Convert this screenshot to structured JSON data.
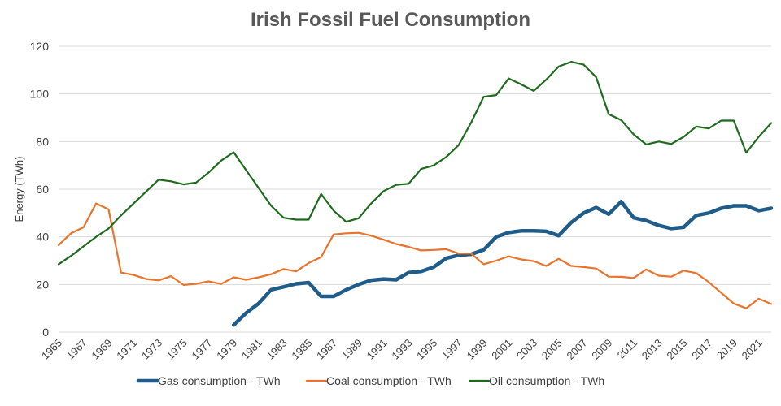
{
  "chart_data": {
    "type": "line",
    "title": "Irish Fossil Fuel Consumption",
    "xlabel": "",
    "ylabel": "Energy (TWh)",
    "xlim": [
      1965,
      2022
    ],
    "ylim": [
      0,
      120
    ],
    "y_ticks": [
      0,
      20,
      40,
      60,
      80,
      100,
      120
    ],
    "x_tick_labels": [
      "1965",
      "1967",
      "1969",
      "1971",
      "1973",
      "1975",
      "1977",
      "1979",
      "1981",
      "1983",
      "1985",
      "1987",
      "1989",
      "1991",
      "1993",
      "1995",
      "1997",
      "1999",
      "2001",
      "2003",
      "2005",
      "2007",
      "2009",
      "2011",
      "2013",
      "2015",
      "2017",
      "2019",
      "2021"
    ],
    "grid": "horizontal",
    "legend_position": "bottom",
    "series": [
      {
        "name": "Gas consumption - TWh",
        "color": "#1F5C8A",
        "width": "thick",
        "x": [
          1979,
          1980,
          1981,
          1982,
          1983,
          1984,
          1985,
          1986,
          1987,
          1988,
          1989,
          1990,
          1991,
          1992,
          1993,
          1994,
          1995,
          1996,
          1997,
          1998,
          1999,
          2000,
          2001,
          2002,
          2003,
          2004,
          2005,
          2006,
          2007,
          2008,
          2009,
          2010,
          2011,
          2012,
          2013,
          2014,
          2015,
          2016,
          2017,
          2018,
          2019,
          2020,
          2021,
          2022
        ],
        "values": [
          3,
          8,
          12,
          17.8,
          19,
          20.3,
          20.8,
          15,
          15,
          17.8,
          20,
          21.8,
          22.3,
          22,
          25,
          25.5,
          27.3,
          31,
          32.3,
          32.7,
          34.5,
          40,
          41.8,
          42.5,
          42.5,
          42.3,
          40.5,
          46,
          50,
          52.3,
          49.5,
          54.8,
          48,
          46.8,
          44.8,
          43.5,
          44,
          49,
          50,
          52,
          53,
          53,
          51,
          52
        ]
      },
      {
        "name": "Coal consumption - TWh",
        "color": "#E8742C",
        "width": "thin",
        "x": [
          1965,
          1966,
          1967,
          1968,
          1969,
          1970,
          1971,
          1972,
          1973,
          1974,
          1975,
          1976,
          1977,
          1978,
          1979,
          1980,
          1981,
          1982,
          1983,
          1984,
          1985,
          1986,
          1987,
          1988,
          1989,
          1990,
          1991,
          1992,
          1993,
          1994,
          1995,
          1996,
          1997,
          1998,
          1999,
          2000,
          2001,
          2002,
          2003,
          2004,
          2005,
          2006,
          2007,
          2008,
          2009,
          2010,
          2011,
          2012,
          2013,
          2014,
          2015,
          2016,
          2017,
          2018,
          2019,
          2020,
          2021,
          2022
        ],
        "values": [
          36.5,
          41.5,
          44,
          54,
          51.5,
          25,
          24,
          22.3,
          21.7,
          23.5,
          19.8,
          20.3,
          21.3,
          20.2,
          23,
          22,
          23,
          24.3,
          26.5,
          25.5,
          29,
          31.5,
          41,
          41.5,
          41.7,
          40.5,
          38.8,
          37,
          35.8,
          34.3,
          34.5,
          34.8,
          33,
          33,
          28.5,
          30,
          31.8,
          30.5,
          29.8,
          27.8,
          30.8,
          27.8,
          27.3,
          26.7,
          23.3,
          23.2,
          22.7,
          26.3,
          23.7,
          23.3,
          25.8,
          24.8,
          21,
          16.5,
          12,
          10,
          14,
          11.8
        ]
      },
      {
        "name": "Oil consumption - TWh",
        "color": "#1E6B1E",
        "width": "thin",
        "x": [
          1965,
          1966,
          1967,
          1968,
          1969,
          1970,
          1971,
          1972,
          1973,
          1974,
          1975,
          1976,
          1977,
          1978,
          1979,
          1980,
          1981,
          1982,
          1983,
          1984,
          1985,
          1986,
          1987,
          1988,
          1989,
          1990,
          1991,
          1992,
          1993,
          1994,
          1995,
          1996,
          1997,
          1998,
          1999,
          2000,
          2001,
          2002,
          2003,
          2004,
          2005,
          2006,
          2007,
          2008,
          2009,
          2010,
          2011,
          2012,
          2013,
          2014,
          2015,
          2016,
          2017,
          2018,
          2019,
          2020,
          2021,
          2022
        ],
        "values": [
          28.5,
          32,
          36,
          40,
          43.5,
          49,
          54,
          59,
          64,
          63.3,
          62,
          62.8,
          67,
          72,
          75.5,
          68,
          60.5,
          53,
          48,
          47.2,
          47.2,
          58,
          51,
          46.3,
          47.8,
          54,
          59.2,
          61.8,
          62.3,
          68.5,
          70,
          73.5,
          78.5,
          88,
          98.8,
          99.5,
          106.5,
          104,
          101.3,
          106,
          111.5,
          113.5,
          112.3,
          107,
          91.5,
          89,
          83,
          78.8,
          80,
          79,
          82,
          86.3,
          85.5,
          88.8,
          88.8,
          75.3,
          82,
          87.8
        ]
      }
    ]
  }
}
